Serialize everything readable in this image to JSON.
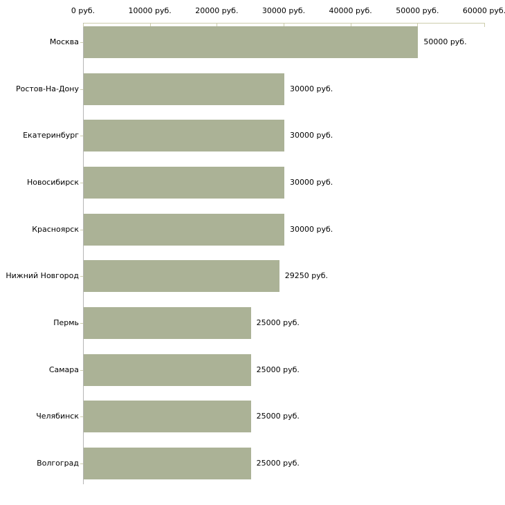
{
  "chart_data": {
    "type": "bar",
    "orientation": "horizontal",
    "title": "",
    "xlabel": "",
    "ylabel": "",
    "xlim": [
      0,
      60000
    ],
    "grid": false,
    "legend": false,
    "categories": [
      "Москва",
      "Ростов-На-Дону",
      "Екатеринбург",
      "Новосибирск",
      "Красноярск",
      "Нижний Новгород",
      "Пермь",
      "Самара",
      "Челябинск",
      "Волгоград"
    ],
    "values": [
      50000,
      30000,
      30000,
      30000,
      30000,
      29250,
      25000,
      25000,
      25000,
      25000
    ],
    "value_labels": [
      "50000 руб.",
      "30000 руб.",
      "30000 руб.",
      "30000 руб.",
      "30000 руб.",
      "29250 руб.",
      "25000 руб.",
      "25000 руб.",
      "25000 руб.",
      "25000 руб."
    ],
    "x_ticks": [
      0,
      10000,
      20000,
      30000,
      40000,
      50000,
      60000
    ],
    "x_tick_labels": [
      "0 руб.",
      "10000 руб.",
      "20000 руб.",
      "30000 руб.",
      "40000 руб.",
      "50000 руб.",
      "60000 руб."
    ],
    "colors": {
      "bar_fill": "#abb296",
      "axis_line": "#ccccab",
      "tick_mark": "#ccccab",
      "vertical_axis_line": "#b5b5b5",
      "text": "#000000",
      "background": "#ffffff"
    }
  }
}
